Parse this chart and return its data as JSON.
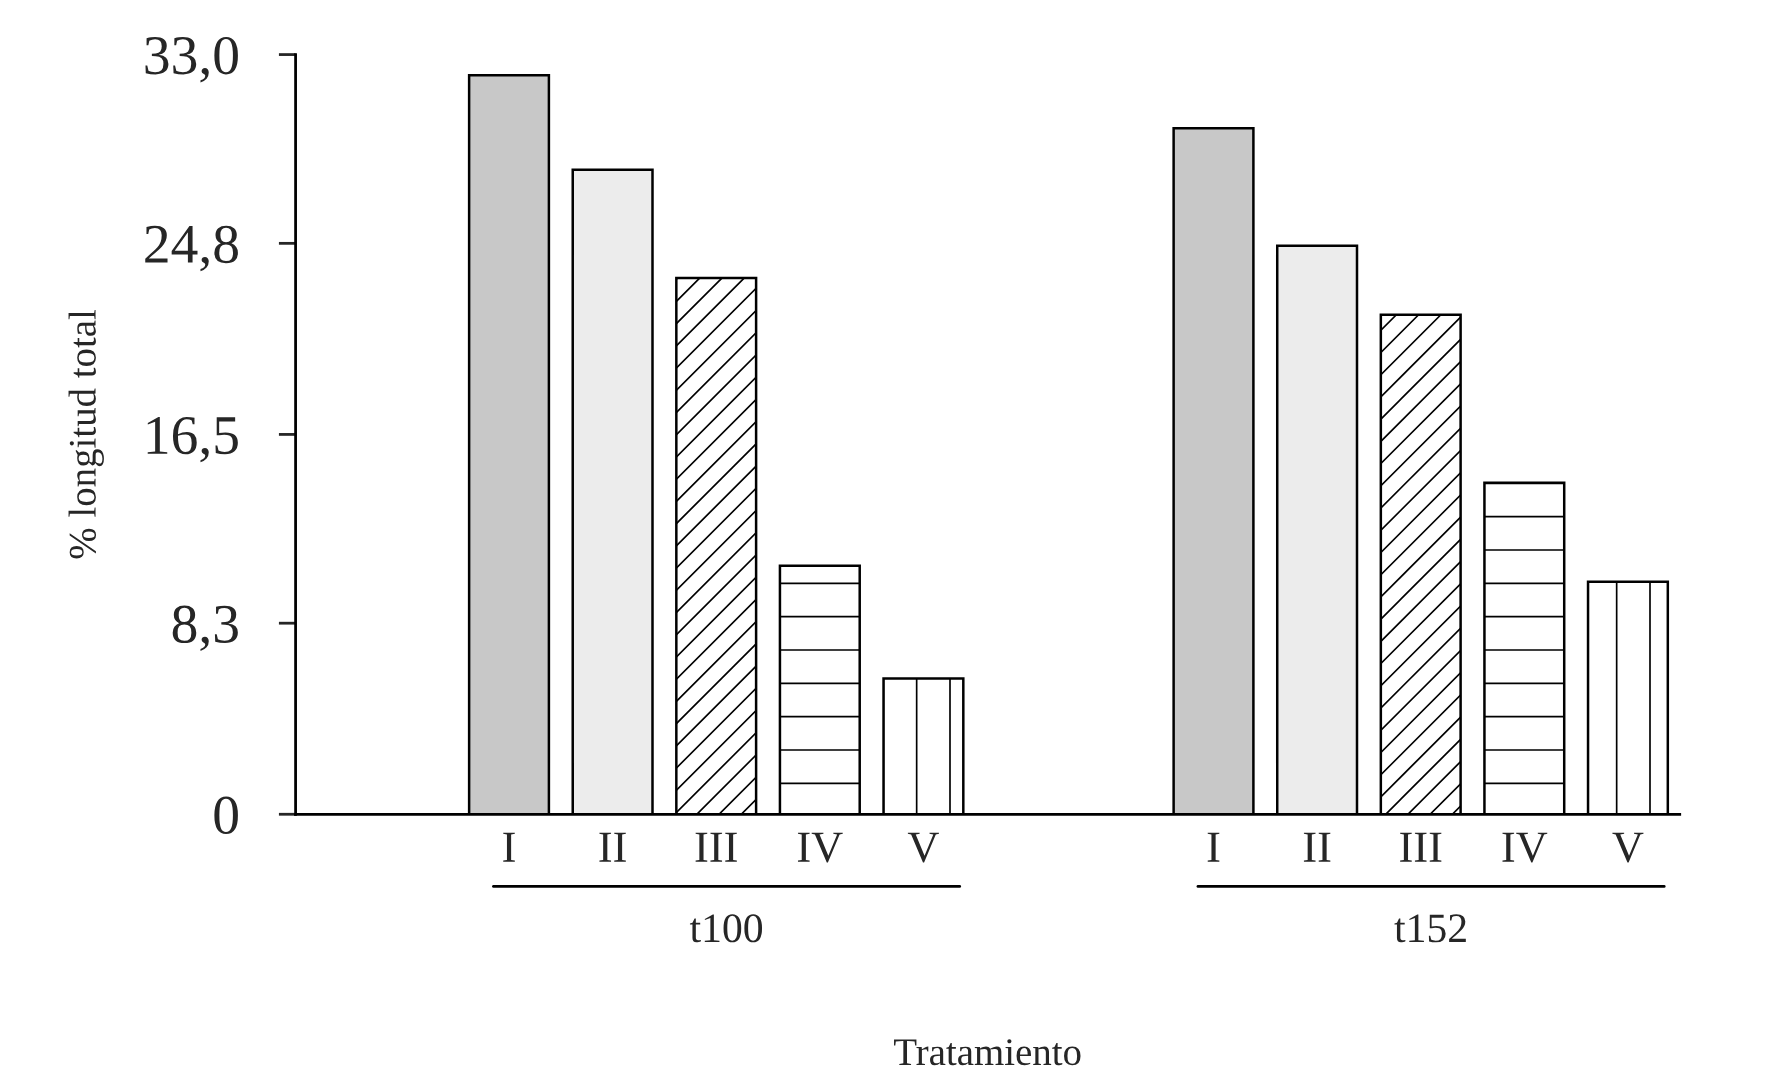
{
  "chart_data": {
    "type": "bar",
    "xlabel": "Tratamiento",
    "ylabel": "% longitud total",
    "categories": [
      "I",
      "II",
      "III",
      "IV",
      "V",
      "I",
      "II",
      "III",
      "IV",
      "V"
    ],
    "values": [
      32.1,
      28.0,
      23.3,
      10.8,
      5.9,
      29.8,
      24.7,
      21.7,
      14.4,
      10.1
    ],
    "colors": [
      "#c8c8c8",
      "#ececec",
      "#ffffff",
      "#ffffff",
      "#ffffff",
      "#c8c8c8",
      "#ececec",
      "#ffffff",
      "#ffffff",
      "#ffffff"
    ],
    "ylim": [
      0,
      33
    ],
    "yticks": [
      0,
      {
        "value": 8.3,
        "label": "8,3"
      },
      {
        "value": 16.5,
        "label": "16,5"
      },
      {
        "value": 24.8,
        "label": "24,8"
      },
      {
        "value": 33,
        "label": "33,0"
      }
    ],
    "annotations": [
      "t100",
      "t152"
    ],
    "grid": false,
    "legend": false
  }
}
